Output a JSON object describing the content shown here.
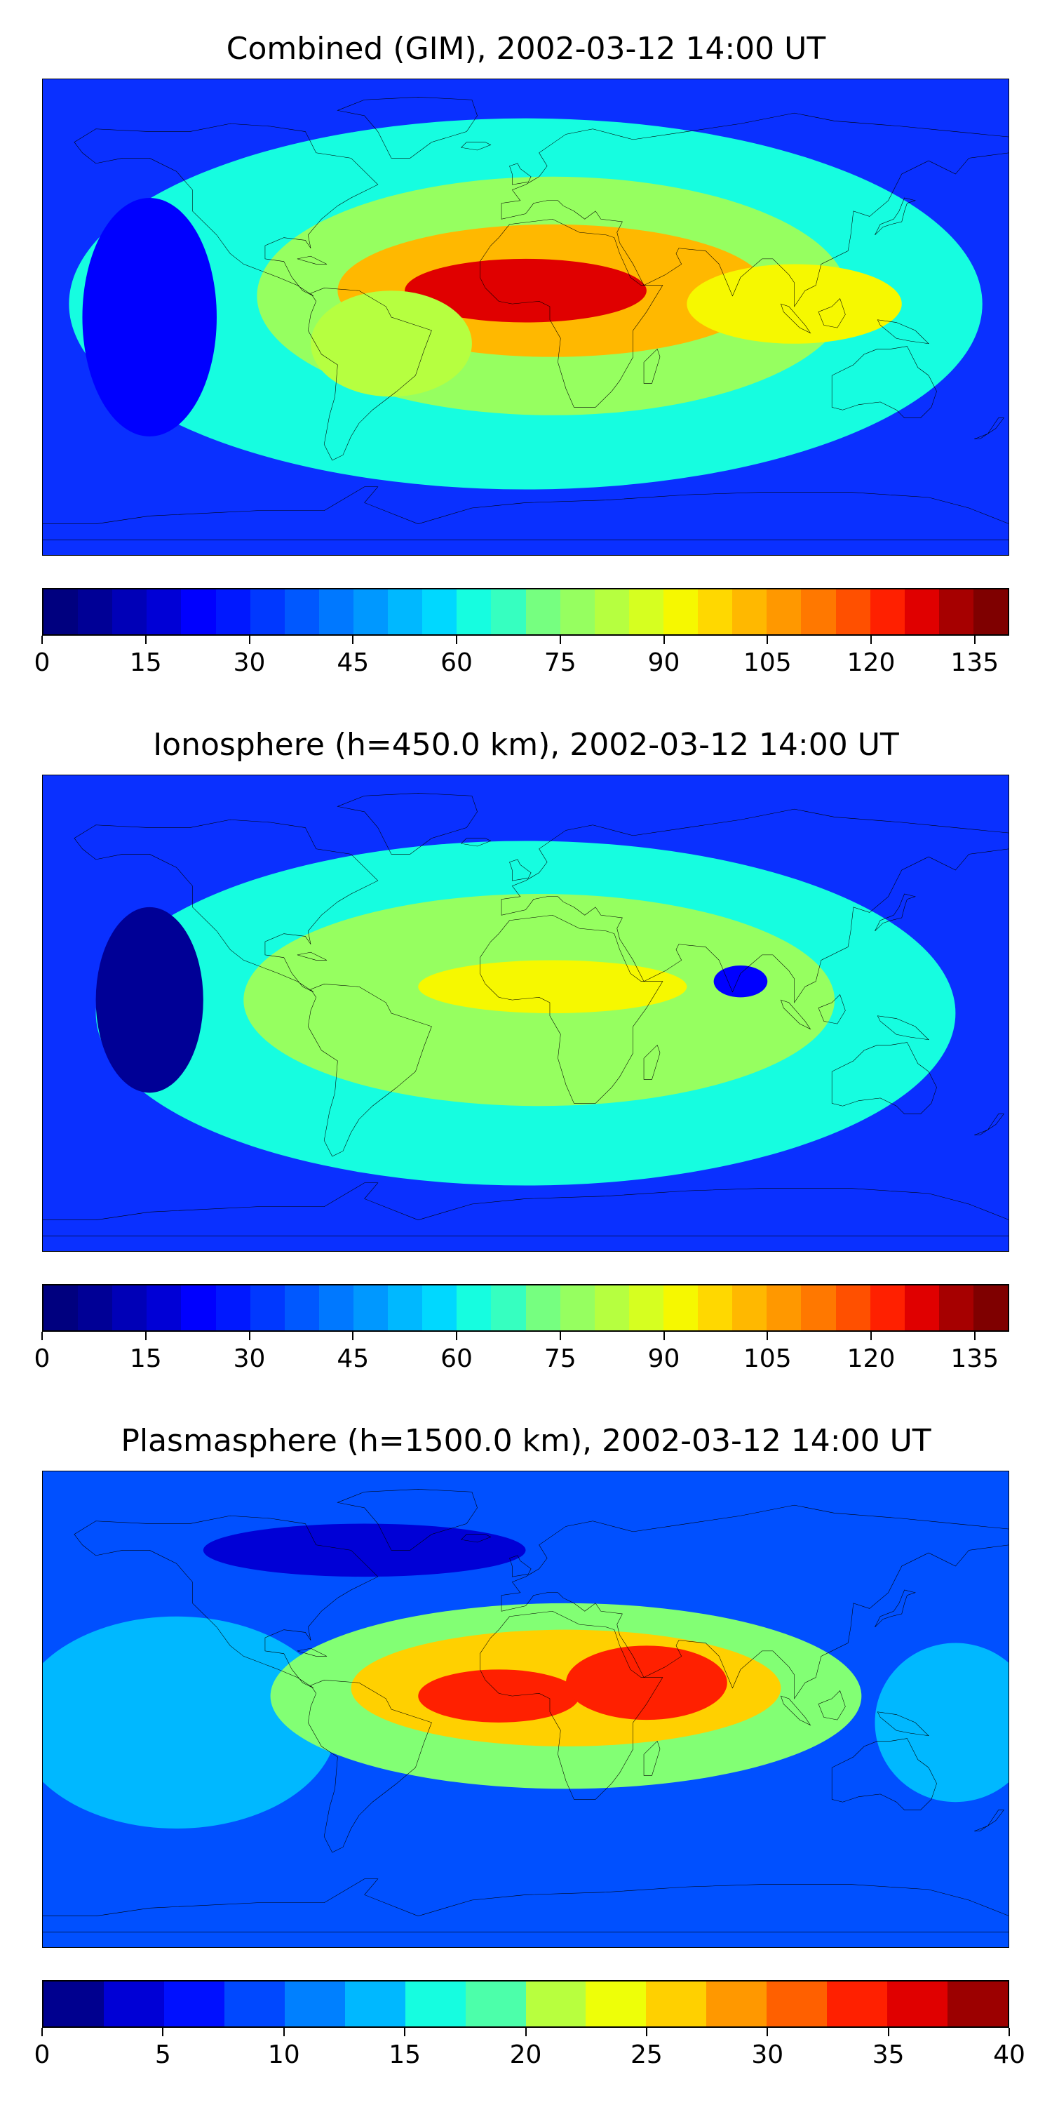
{
  "panels": [
    {
      "title": "Combined (GIM), 2002-03-12 14:00 UT",
      "colorbar": {
        "min": 0,
        "max": 140,
        "ticks": [
          "0",
          "15",
          "30",
          "45",
          "60",
          "75",
          "90",
          "105",
          "120",
          "135"
        ],
        "tick_values": [
          0,
          15,
          30,
          45,
          60,
          75,
          90,
          105,
          120,
          135
        ],
        "levels": 28,
        "colors": [
          "#00007f",
          "#000096",
          "#0000b7",
          "#0000d6",
          "#0000ff",
          "#0018ff",
          "#0038ff",
          "#0058ff",
          "#0078ff",
          "#0098ff",
          "#00b8ff",
          "#00d8ff",
          "#16fde0",
          "#36ffc0",
          "#56ffa0",
          "#76ff80",
          "#96ff60",
          "#b6ff40",
          "#d6ff20",
          "#f6f800",
          "#ffd800",
          "#ffb800",
          "#ff9800",
          "#ff7800",
          "#ff5000",
          "#ff2000",
          "#e00000",
          "#a60000",
          "#7f0000"
        ]
      },
      "field": {
        "background": "#0a30ff",
        "blobs": [
          {
            "lon": 0,
            "lat": 5,
            "rx": 170,
            "ry": 70,
            "level": 60
          },
          {
            "lon": 10,
            "lat": 8,
            "rx": 110,
            "ry": 45,
            "level": 80
          },
          {
            "lon": 10,
            "lat": 10,
            "rx": 80,
            "ry": 25,
            "level": 105
          },
          {
            "lon": 0,
            "lat": 10,
            "rx": 45,
            "ry": 12,
            "level": 130
          },
          {
            "lon": 100,
            "lat": 5,
            "rx": 40,
            "ry": 15,
            "level": 95
          },
          {
            "lon": -50,
            "lat": -10,
            "rx": 30,
            "ry": 20,
            "level": 85
          },
          {
            "lon": -140,
            "lat": 0,
            "rx": 25,
            "ry": 45,
            "level": 20
          }
        ]
      }
    },
    {
      "title": "Ionosphere  (h=450.0 km), 2002-03-12 14:00 UT",
      "colorbar": {
        "min": 0,
        "max": 140,
        "ticks": [
          "0",
          "15",
          "30",
          "45",
          "60",
          "75",
          "90",
          "105",
          "120",
          "135"
        ],
        "tick_values": [
          0,
          15,
          30,
          45,
          60,
          75,
          90,
          105,
          120,
          135
        ],
        "levels": 28,
        "colors": [
          "#00007f",
          "#000096",
          "#0000b7",
          "#0000d6",
          "#0000ff",
          "#0018ff",
          "#0038ff",
          "#0058ff",
          "#0078ff",
          "#0098ff",
          "#00b8ff",
          "#00d8ff",
          "#16fde0",
          "#36ffc0",
          "#56ffa0",
          "#76ff80",
          "#96ff60",
          "#b6ff40",
          "#d6ff20",
          "#f6f800",
          "#ffd800",
          "#ffb800",
          "#ff9800",
          "#ff7800",
          "#ff5000",
          "#ff2000",
          "#e00000",
          "#a60000",
          "#7f0000"
        ]
      },
      "field": {
        "background": "#0a30ff",
        "blobs": [
          {
            "lon": 0,
            "lat": 0,
            "rx": 160,
            "ry": 65,
            "level": 60
          },
          {
            "lon": 5,
            "lat": 5,
            "rx": 110,
            "ry": 40,
            "level": 80
          },
          {
            "lon": 10,
            "lat": 10,
            "rx": 50,
            "ry": 10,
            "level": 95
          },
          {
            "lon": 80,
            "lat": 12,
            "rx": 10,
            "ry": 6,
            "level": 20
          },
          {
            "lon": -140,
            "lat": 5,
            "rx": 20,
            "ry": 35,
            "level": 8
          }
        ]
      }
    },
    {
      "title": "Plasmasphere (h=1500.0 km), 2002-03-12 14:00 UT",
      "colorbar": {
        "min": 0,
        "max": 40,
        "ticks": [
          "0",
          "5",
          "10",
          "15",
          "20",
          "25",
          "30",
          "35",
          "40"
        ],
        "tick_values": [
          0,
          5,
          10,
          15,
          20,
          25,
          30,
          35,
          40
        ],
        "levels": 16,
        "colors": [
          "#00008f",
          "#0000d6",
          "#0010ff",
          "#0048ff",
          "#0080ff",
          "#00b8ff",
          "#16fde0",
          "#4cffaa",
          "#82ff74",
          "#b8ff3e",
          "#eeff08",
          "#ffd000",
          "#ff9800",
          "#ff6000",
          "#ff2000",
          "#e00000",
          "#9c0000"
        ]
      },
      "field": {
        "background": "#0050ff",
        "blobs": [
          {
            "lon": -130,
            "lat": -5,
            "rx": 60,
            "ry": 40,
            "level": 13
          },
          {
            "lon": 160,
            "lat": -5,
            "rx": 30,
            "ry": 30,
            "level": 14
          },
          {
            "lon": 15,
            "lat": 5,
            "rx": 110,
            "ry": 35,
            "level": 20
          },
          {
            "lon": 15,
            "lat": 8,
            "rx": 80,
            "ry": 22,
            "level": 27
          },
          {
            "lon": -10,
            "lat": 5,
            "rx": 30,
            "ry": 10,
            "level": 34
          },
          {
            "lon": 45,
            "lat": 10,
            "rx": 30,
            "ry": 14,
            "level": 35
          },
          {
            "lon": -60,
            "lat": 60,
            "rx": 60,
            "ry": 10,
            "level": 3
          }
        ]
      }
    }
  ],
  "map_features": {
    "coastlines": "black",
    "projection": "plate-carree"
  }
}
